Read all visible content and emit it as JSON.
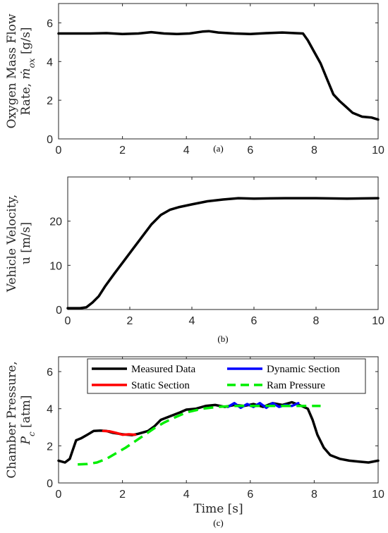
{
  "chart_data": [
    {
      "type": "line",
      "panel": "a",
      "caption": "(a)",
      "ylabel_lines": [
        "Oxygen Mass Flow",
        "Rate, ṁ_ox [g/s]"
      ],
      "xlabel": "",
      "xlim": [
        0,
        10
      ],
      "ylim": [
        0,
        7
      ],
      "xticks": [
        "0",
        "2",
        "4",
        "6",
        "8",
        "10"
      ],
      "yticks": [
        "0",
        "2",
        "4",
        "6"
      ],
      "grid": false,
      "series": [
        {
          "color": "#000000",
          "x": [
            0,
            0.5,
            1,
            1.5,
            2,
            2.5,
            2.9,
            3.3,
            3.7,
            4.1,
            4.5,
            4.7,
            5.0,
            5.5,
            6.0,
            6.5,
            7.0,
            7.4,
            7.65,
            7.8,
            8.0,
            8.2,
            8.4,
            8.6,
            8.8,
            9.0,
            9.2,
            9.5,
            9.8,
            10
          ],
          "y": [
            5.45,
            5.45,
            5.45,
            5.47,
            5.42,
            5.45,
            5.52,
            5.45,
            5.42,
            5.45,
            5.55,
            5.57,
            5.5,
            5.45,
            5.42,
            5.47,
            5.5,
            5.47,
            5.45,
            5.1,
            4.5,
            3.9,
            3.1,
            2.3,
            1.95,
            1.65,
            1.35,
            1.15,
            1.1,
            1.0
          ]
        }
      ]
    },
    {
      "type": "line",
      "panel": "b",
      "caption": "(b)",
      "ylabel_lines": [
        "Vehicle Velocity,",
        "u [m/s]"
      ],
      "xlabel": "",
      "xlim": [
        0,
        10
      ],
      "ylim": [
        0,
        30
      ],
      "xticks": [
        "0",
        "2",
        "4",
        "6",
        "8",
        "10"
      ],
      "yticks": [
        "0",
        "10",
        "20"
      ],
      "grid": false,
      "series": [
        {
          "color": "#000000",
          "x": [
            0,
            0.4,
            0.6,
            0.8,
            1.0,
            1.2,
            1.5,
            1.8,
            2.1,
            2.4,
            2.7,
            3.0,
            3.3,
            3.6,
            4.0,
            4.5,
            5.0,
            5.5,
            6.0,
            7.0,
            8.0,
            9.0,
            10
          ],
          "y": [
            0.3,
            0.3,
            0.5,
            1.6,
            3.0,
            5.2,
            8.1,
            10.9,
            13.7,
            16.5,
            19.3,
            21.4,
            22.6,
            23.2,
            23.8,
            24.5,
            24.9,
            25.2,
            25.1,
            25.2,
            25.2,
            25.1,
            25.2
          ]
        }
      ]
    },
    {
      "type": "line",
      "panel": "c",
      "caption": "(c)",
      "ylabel_lines": [
        "Chamber Pressure,",
        "P_c [atm]"
      ],
      "xlabel": "Time [s]",
      "xlim": [
        0,
        10
      ],
      "ylim": [
        0,
        6.8
      ],
      "xticks": [
        "0",
        "2",
        "4",
        "6",
        "8",
        "10"
      ],
      "yticks": [
        "0",
        "2",
        "4",
        "6"
      ],
      "grid": false,
      "legend": {
        "placement": "top",
        "columns": 2
      },
      "series": [
        {
          "name": "Measured Data",
          "color": "#000000",
          "style": "solid",
          "x": [
            0,
            0.2,
            0.35,
            0.45,
            0.55,
            0.7,
            0.9,
            1.1,
            1.3,
            1.5,
            1.7,
            2.0,
            2.3,
            2.5,
            2.8,
            3.0,
            3.2,
            3.5,
            3.8,
            4.0,
            4.3,
            4.6,
            4.9,
            5.2,
            5.5,
            5.8,
            6.1,
            6.4,
            6.7,
            7.0,
            7.3,
            7.6,
            7.8,
            7.95,
            8.1,
            8.3,
            8.5,
            8.8,
            9.1,
            9.4,
            9.7,
            10
          ],
          "y": [
            1.2,
            1.1,
            1.3,
            1.8,
            2.3,
            2.4,
            2.6,
            2.8,
            2.82,
            2.8,
            2.7,
            2.62,
            2.58,
            2.65,
            2.8,
            3.05,
            3.4,
            3.6,
            3.8,
            3.95,
            4.0,
            4.15,
            4.2,
            4.1,
            4.2,
            4.15,
            4.25,
            4.1,
            4.3,
            4.2,
            4.35,
            4.15,
            4.0,
            3.4,
            2.6,
            1.9,
            1.5,
            1.3,
            1.2,
            1.15,
            1.1,
            1.2
          ]
        },
        {
          "name": "Static Section",
          "color": "#ff0000",
          "style": "solid",
          "x": [
            1.4,
            1.6,
            1.8,
            2.0,
            2.2,
            2.4
          ],
          "y": [
            2.8,
            2.78,
            2.7,
            2.6,
            2.62,
            2.6
          ]
        },
        {
          "name": "Dynamic Section",
          "color": "#0000ff",
          "style": "solid",
          "x": [
            5.3,
            5.5,
            5.7,
            5.9,
            6.1,
            6.3,
            6.5,
            6.7,
            6.9,
            7.1,
            7.3,
            7.5
          ],
          "y": [
            4.1,
            4.3,
            4.05,
            4.25,
            4.1,
            4.3,
            4.05,
            4.3,
            4.1,
            4.2,
            4.15,
            4.3
          ]
        },
        {
          "name": "Ram Pressure",
          "color": "#00ee00",
          "style": "dashed",
          "x": [
            0.6,
            0.9,
            1.2,
            1.5,
            1.8,
            2.1,
            2.4,
            2.7,
            3.0,
            3.3,
            3.6,
            4.0,
            4.5,
            5.0,
            5.5,
            6.0,
            7.0,
            8.0,
            8.2
          ],
          "y": [
            1.0,
            1.02,
            1.1,
            1.3,
            1.6,
            1.9,
            2.25,
            2.6,
            2.95,
            3.25,
            3.5,
            3.8,
            4.0,
            4.1,
            4.15,
            4.15,
            4.15,
            4.15,
            4.15
          ]
        }
      ]
    }
  ]
}
